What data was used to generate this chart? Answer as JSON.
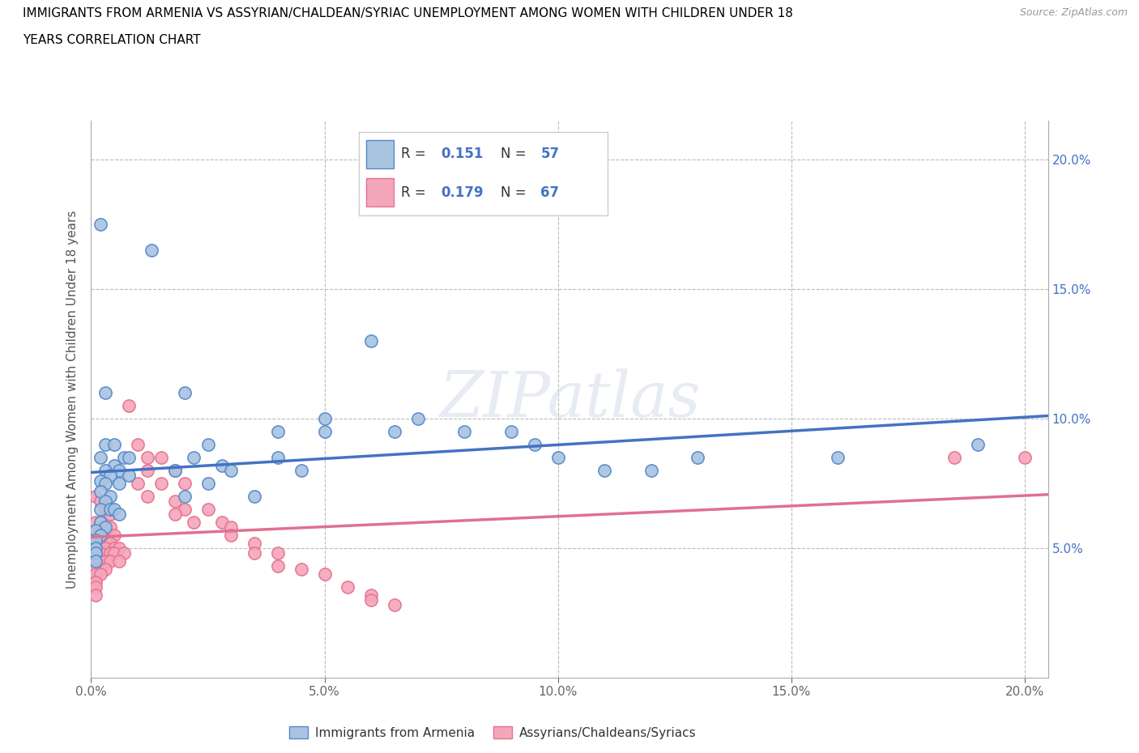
{
  "title_line1": "IMMIGRANTS FROM ARMENIA VS ASSYRIAN/CHALDEAN/SYRIAC UNEMPLOYMENT AMONG WOMEN WITH CHILDREN UNDER 18",
  "title_line2": "YEARS CORRELATION CHART",
  "source": "Source: ZipAtlas.com",
  "ylabel": "Unemployment Among Women with Children Under 18 years",
  "xlabel_ticks": [
    "0.0%",
    "5.0%",
    "10.0%",
    "15.0%",
    "20.0%"
  ],
  "xlabel_vals": [
    0.0,
    0.05,
    0.1,
    0.15,
    0.2
  ],
  "right_ytick_labels": [
    "20.0%",
    "15.0%",
    "10.0%",
    "5.0%"
  ],
  "right_ytick_vals": [
    0.2,
    0.15,
    0.1,
    0.05
  ],
  "xlim": [
    0.0,
    0.205
  ],
  "ylim": [
    0.0,
    0.215
  ],
  "blue_R": 0.151,
  "blue_N": 57,
  "pink_R": 0.179,
  "pink_N": 67,
  "blue_color": "#a8c4e0",
  "pink_color": "#f4a7b9",
  "blue_edge_color": "#5588cc",
  "pink_edge_color": "#e87090",
  "blue_line_color": "#4472c4",
  "pink_line_color": "#e07090",
  "grid_color": "#bbbbbb",
  "legend_text_color": "#333333",
  "legend_val_color": "#4472c4",
  "watermark": "ZIPatlas",
  "blue_scatter": [
    [
      0.002,
      0.175
    ],
    [
      0.013,
      0.165
    ],
    [
      0.003,
      0.11
    ],
    [
      0.003,
      0.09
    ],
    [
      0.005,
      0.09
    ],
    [
      0.002,
      0.085
    ],
    [
      0.007,
      0.085
    ],
    [
      0.008,
      0.085
    ],
    [
      0.005,
      0.082
    ],
    [
      0.003,
      0.08
    ],
    [
      0.006,
      0.08
    ],
    [
      0.004,
      0.078
    ],
    [
      0.008,
      0.078
    ],
    [
      0.002,
      0.076
    ],
    [
      0.003,
      0.075
    ],
    [
      0.006,
      0.075
    ],
    [
      0.002,
      0.072
    ],
    [
      0.004,
      0.07
    ],
    [
      0.003,
      0.068
    ],
    [
      0.002,
      0.065
    ],
    [
      0.004,
      0.065
    ],
    [
      0.005,
      0.065
    ],
    [
      0.006,
      0.063
    ],
    [
      0.002,
      0.06
    ],
    [
      0.003,
      0.058
    ],
    [
      0.001,
      0.057
    ],
    [
      0.002,
      0.055
    ],
    [
      0.001,
      0.053
    ],
    [
      0.001,
      0.05
    ],
    [
      0.001,
      0.048
    ],
    [
      0.001,
      0.045
    ],
    [
      0.02,
      0.11
    ],
    [
      0.025,
      0.09
    ],
    [
      0.022,
      0.085
    ],
    [
      0.028,
      0.082
    ],
    [
      0.018,
      0.08
    ],
    [
      0.03,
      0.08
    ],
    [
      0.025,
      0.075
    ],
    [
      0.02,
      0.07
    ],
    [
      0.035,
      0.07
    ],
    [
      0.04,
      0.095
    ],
    [
      0.04,
      0.085
    ],
    [
      0.045,
      0.08
    ],
    [
      0.05,
      0.1
    ],
    [
      0.05,
      0.095
    ],
    [
      0.06,
      0.13
    ],
    [
      0.065,
      0.095
    ],
    [
      0.07,
      0.1
    ],
    [
      0.08,
      0.095
    ],
    [
      0.09,
      0.095
    ],
    [
      0.095,
      0.09
    ],
    [
      0.1,
      0.085
    ],
    [
      0.11,
      0.08
    ],
    [
      0.12,
      0.08
    ],
    [
      0.13,
      0.085
    ],
    [
      0.16,
      0.085
    ],
    [
      0.19,
      0.09
    ]
  ],
  "pink_scatter": [
    [
      0.001,
      0.07
    ],
    [
      0.002,
      0.068
    ],
    [
      0.003,
      0.065
    ],
    [
      0.004,
      0.063
    ],
    [
      0.001,
      0.06
    ],
    [
      0.002,
      0.06
    ],
    [
      0.004,
      0.058
    ],
    [
      0.002,
      0.057
    ],
    [
      0.003,
      0.056
    ],
    [
      0.001,
      0.055
    ],
    [
      0.002,
      0.055
    ],
    [
      0.005,
      0.055
    ],
    [
      0.002,
      0.053
    ],
    [
      0.003,
      0.053
    ],
    [
      0.004,
      0.052
    ],
    [
      0.001,
      0.05
    ],
    [
      0.003,
      0.05
    ],
    [
      0.005,
      0.05
    ],
    [
      0.006,
      0.05
    ],
    [
      0.001,
      0.048
    ],
    [
      0.002,
      0.048
    ],
    [
      0.004,
      0.048
    ],
    [
      0.005,
      0.048
    ],
    [
      0.007,
      0.048
    ],
    [
      0.001,
      0.045
    ],
    [
      0.002,
      0.045
    ],
    [
      0.003,
      0.045
    ],
    [
      0.004,
      0.045
    ],
    [
      0.006,
      0.045
    ],
    [
      0.001,
      0.042
    ],
    [
      0.002,
      0.042
    ],
    [
      0.003,
      0.042
    ],
    [
      0.001,
      0.04
    ],
    [
      0.002,
      0.04
    ],
    [
      0.001,
      0.037
    ],
    [
      0.001,
      0.035
    ],
    [
      0.001,
      0.032
    ],
    [
      0.008,
      0.105
    ],
    [
      0.01,
      0.09
    ],
    [
      0.012,
      0.085
    ],
    [
      0.015,
      0.085
    ],
    [
      0.012,
      0.08
    ],
    [
      0.018,
      0.08
    ],
    [
      0.01,
      0.075
    ],
    [
      0.015,
      0.075
    ],
    [
      0.02,
      0.075
    ],
    [
      0.012,
      0.07
    ],
    [
      0.018,
      0.068
    ],
    [
      0.02,
      0.065
    ],
    [
      0.025,
      0.065
    ],
    [
      0.018,
      0.063
    ],
    [
      0.022,
      0.06
    ],
    [
      0.028,
      0.06
    ],
    [
      0.03,
      0.058
    ],
    [
      0.03,
      0.055
    ],
    [
      0.035,
      0.052
    ],
    [
      0.035,
      0.048
    ],
    [
      0.04,
      0.048
    ],
    [
      0.04,
      0.043
    ],
    [
      0.045,
      0.042
    ],
    [
      0.05,
      0.04
    ],
    [
      0.055,
      0.035
    ],
    [
      0.06,
      0.032
    ],
    [
      0.06,
      0.03
    ],
    [
      0.065,
      0.028
    ],
    [
      0.185,
      0.085
    ],
    [
      0.2,
      0.085
    ]
  ],
  "legend_labels": [
    "Immigrants from Armenia",
    "Assyrians/Chaldeans/Syriacs"
  ],
  "marker_size": 120
}
